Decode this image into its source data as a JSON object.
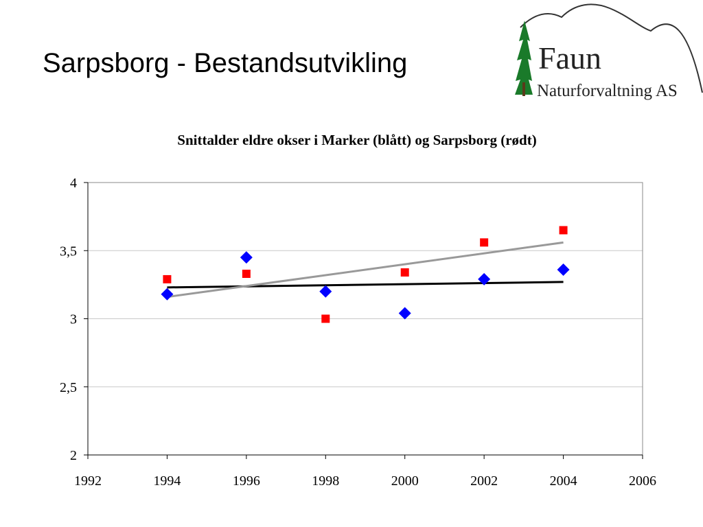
{
  "slide": {
    "title": "Sarpsborg - Bestandsutvikling"
  },
  "logo": {
    "name": "Faun",
    "subtitle": "Naturforvaltning AS"
  },
  "chart_data": {
    "type": "scatter",
    "title": "Snittalder eldre okser i Marker (blått) og Sarpsborg (rødt)",
    "xlabel": "",
    "ylabel": "",
    "xlim": [
      1992,
      2006
    ],
    "ylim": [
      2,
      4
    ],
    "xticks": [
      1992,
      1994,
      1996,
      1998,
      2000,
      2002,
      2004,
      2006
    ],
    "yticks": [
      2,
      2.5,
      3,
      3.5,
      4
    ],
    "ytick_labels": [
      "2",
      "2,5",
      "3",
      "3,5",
      "4"
    ],
    "grid": true,
    "legend": "none",
    "series": [
      {
        "color": "#0000ff",
        "marker": "diamond",
        "points": [
          [
            1994,
            3.18
          ],
          [
            1996,
            3.45
          ],
          [
            1998,
            3.2
          ],
          [
            2000,
            3.04
          ],
          [
            2002,
            3.29
          ],
          [
            2004,
            3.36
          ]
        ],
        "trendline": {
          "color": "#000000",
          "from": [
            1994,
            3.23
          ],
          "to": [
            2004,
            3.27
          ]
        }
      },
      {
        "color": "#ff0000",
        "marker": "square",
        "points": [
          [
            1994,
            3.29
          ],
          [
            1996,
            3.33
          ],
          [
            1998,
            3.0
          ],
          [
            2000,
            3.34
          ],
          [
            2002,
            3.56
          ],
          [
            2004,
            3.65
          ]
        ],
        "trendline": {
          "color": "#999999",
          "from": [
            1994,
            3.16
          ],
          "to": [
            2004,
            3.56
          ]
        }
      }
    ]
  }
}
